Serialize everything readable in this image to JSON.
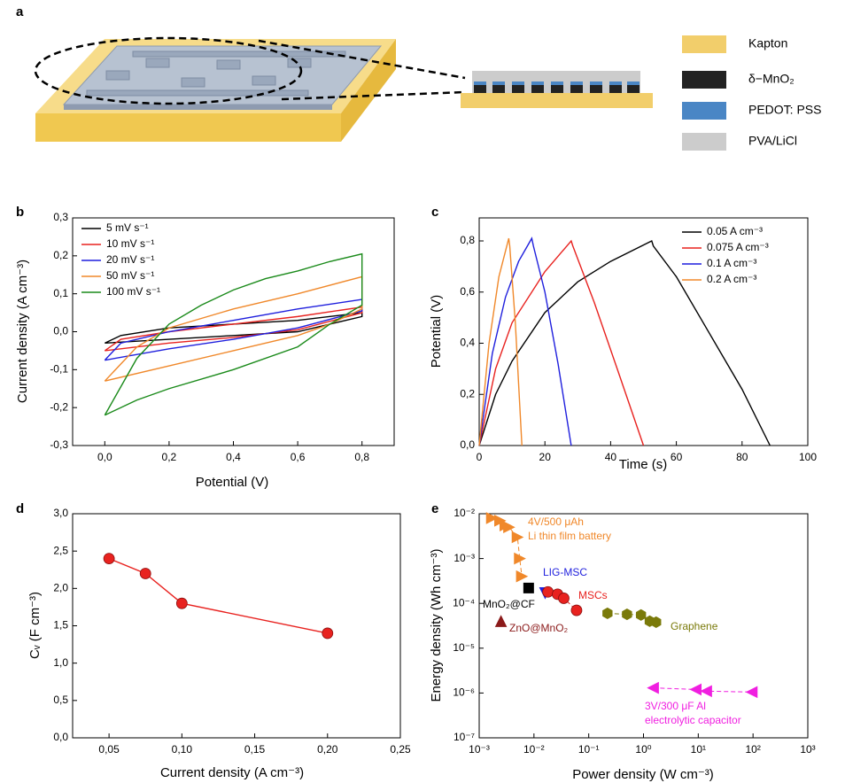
{
  "schematic": {
    "panel": "a",
    "legend": [
      {
        "name": "Kapton",
        "color": "#f2ce6b"
      },
      {
        "name": "δ−MnO₂",
        "color": "#222222"
      },
      {
        "name": "PEDOT: PSS",
        "color": "#4a86c5"
      },
      {
        "name": "PVA/LiCl",
        "color": "#cccccc"
      }
    ]
  },
  "chart_data": [
    {
      "type": "line",
      "panel": "b",
      "x_label": "Potential (V)",
      "y_label": "Current density (A cm⁻³)",
      "xlim": [
        -0.1,
        0.9
      ],
      "ylim": [
        -0.3,
        0.3
      ],
      "xticks": [
        {
          "value": 0,
          "label": "0,0"
        },
        {
          "value": 0.2,
          "label": "0,2"
        },
        {
          "value": 0.4,
          "label": "0,4"
        },
        {
          "value": 0.6,
          "label": "0,6"
        },
        {
          "value": 0.8,
          "label": "0,8"
        }
      ],
      "yticks": [
        {
          "value": -0.3,
          "label": "-0,3"
        },
        {
          "value": -0.2,
          "label": "-0,2"
        },
        {
          "value": -0.1,
          "label": "-0,1"
        },
        {
          "value": 0,
          "label": "0,0"
        },
        {
          "value": 0.1,
          "label": "0,1"
        },
        {
          "value": 0.2,
          "label": "0,2"
        },
        {
          "value": 0.3,
          "label": "0,3"
        }
      ],
      "series": [
        {
          "name": "5 mV s⁻¹",
          "color": "#000000",
          "x": [
            0,
            0.05,
            0.2,
            0.4,
            0.6,
            0.8,
            0.8,
            0.6,
            0.4,
            0.2,
            0
          ],
          "values": [
            -0.03,
            -0.01,
            0.01,
            0.02,
            0.03,
            0.05,
            0.04,
            0.0,
            -0.01,
            -0.02,
            -0.03
          ]
        },
        {
          "name": "10 mV s⁻¹",
          "color": "#e8221f",
          "x": [
            0,
            0.05,
            0.2,
            0.4,
            0.6,
            0.8,
            0.8,
            0.6,
            0.4,
            0.2,
            0
          ],
          "values": [
            -0.05,
            -0.02,
            0.0,
            0.02,
            0.04,
            0.065,
            0.05,
            0.005,
            -0.015,
            -0.03,
            -0.05
          ]
        },
        {
          "name": "20 mV s⁻¹",
          "color": "#1f1fdd",
          "x": [
            0,
            0.05,
            0.2,
            0.4,
            0.6,
            0.8,
            0.8,
            0.6,
            0.4,
            0.2,
            0
          ],
          "values": [
            -0.075,
            -0.03,
            0.0,
            0.03,
            0.06,
            0.085,
            0.055,
            0.01,
            -0.02,
            -0.045,
            -0.075
          ]
        },
        {
          "name": "50 mV s⁻¹",
          "color": "#f0882a",
          "x": [
            0,
            0.1,
            0.2,
            0.4,
            0.6,
            0.8,
            0.8,
            0.7,
            0.6,
            0.4,
            0.2,
            0
          ],
          "values": [
            -0.13,
            -0.04,
            0.01,
            0.06,
            0.1,
            0.145,
            0.06,
            0.02,
            -0.01,
            -0.05,
            -0.09,
            -0.13
          ]
        },
        {
          "name": "100 mV s⁻¹",
          "color": "#1a8a1a",
          "x": [
            0,
            0.1,
            0.2,
            0.3,
            0.4,
            0.5,
            0.6,
            0.7,
            0.8,
            0.8,
            0.7,
            0.6,
            0.4,
            0.2,
            0.1,
            0
          ],
          "values": [
            -0.22,
            -0.07,
            0.02,
            0.07,
            0.11,
            0.14,
            0.16,
            0.185,
            0.205,
            0.07,
            0.02,
            -0.04,
            -0.1,
            -0.15,
            -0.18,
            -0.22
          ]
        }
      ]
    },
    {
      "type": "line",
      "panel": "c",
      "x_label": "Time (s)",
      "y_label": "Potential (V)",
      "xlim": [
        0,
        100
      ],
      "ylim": [
        0,
        0.89
      ],
      "xticks": [
        0,
        20,
        40,
        60,
        80,
        100
      ],
      "yticks": [
        {
          "value": 0,
          "label": "0,0"
        },
        {
          "value": 0.2,
          "label": "0,2"
        },
        {
          "value": 0.4,
          "label": "0,4"
        },
        {
          "value": 0.6,
          "label": "0,6"
        },
        {
          "value": 0.8,
          "label": "0,8"
        }
      ],
      "series": [
        {
          "name": "0.05 A cm⁻³",
          "color": "#000000",
          "x": [
            0,
            5,
            10,
            20,
            30,
            40,
            52.5,
            53,
            60,
            70,
            80,
            88.5
          ],
          "values": [
            0,
            0.2,
            0.33,
            0.52,
            0.64,
            0.72,
            0.8,
            0.78,
            0.66,
            0.44,
            0.22,
            0
          ]
        },
        {
          "name": "0.075 A cm⁻³",
          "color": "#e8221f",
          "x": [
            0,
            5,
            10,
            20,
            28,
            28.5,
            35,
            42,
            50
          ],
          "values": [
            0,
            0.3,
            0.48,
            0.68,
            0.8,
            0.78,
            0.56,
            0.3,
            0
          ]
        },
        {
          "name": "0.1 A cm⁻³",
          "color": "#1f1fdd",
          "x": [
            0,
            4,
            8,
            12,
            16,
            16.5,
            20,
            24,
            28
          ],
          "values": [
            0,
            0.36,
            0.58,
            0.72,
            0.81,
            0.78,
            0.6,
            0.32,
            0
          ]
        },
        {
          "name": "0.2 A cm⁻³",
          "color": "#f0882a",
          "x": [
            0,
            3,
            6,
            9,
            9.3,
            11,
            13
          ],
          "values": [
            0,
            0.4,
            0.66,
            0.81,
            0.78,
            0.48,
            0
          ]
        }
      ]
    },
    {
      "type": "line",
      "panel": "d",
      "x_label": "Current density (A cm⁻³)",
      "y_label": "Cᵥ (F cm⁻³)",
      "xlim": [
        0.025,
        0.25
      ],
      "ylim": [
        0,
        3
      ],
      "xticks": [
        {
          "value": 0.05,
          "label": "0,05"
        },
        {
          "value": 0.1,
          "label": "0,10"
        },
        {
          "value": 0.15,
          "label": "0,15"
        },
        {
          "value": 0.2,
          "label": "0,20"
        },
        {
          "value": 0.25,
          "label": "0,25"
        }
      ],
      "yticks": [
        {
          "value": 0,
          "label": "0,0"
        },
        {
          "value": 0.5,
          "label": "0,5"
        },
        {
          "value": 1,
          "label": "1,0"
        },
        {
          "value": 1.5,
          "label": "1,5"
        },
        {
          "value": 2,
          "label": "2,0"
        },
        {
          "value": 2.5,
          "label": "2,5"
        },
        {
          "value": 3,
          "label": "3,0"
        }
      ],
      "series": [
        {
          "color": "#e8221f",
          "marker": "circle",
          "x": [
            0.05,
            0.075,
            0.1,
            0.2
          ],
          "values": [
            2.4,
            2.2,
            1.8,
            1.4
          ]
        }
      ]
    },
    {
      "type": "scatter",
      "panel": "e",
      "x_label": "Power density (W cm⁻³)",
      "y_label": "Energy density (Wh cm⁻³)",
      "log_x": true,
      "log_y": true,
      "xlim": [
        0.001,
        1000
      ],
      "ylim": [
        1e-07,
        0.01
      ],
      "xticks": [
        {
          "value": 0.001,
          "label": "10⁻³"
        },
        {
          "value": 0.01,
          "label": "10⁻²"
        },
        {
          "value": 0.1,
          "label": "10⁻¹"
        },
        {
          "value": 1,
          "label": "10⁰"
        },
        {
          "value": 10,
          "label": "10¹"
        },
        {
          "value": 100,
          "label": "10²"
        },
        {
          "value": 1000,
          "label": "10³"
        }
      ],
      "yticks": [
        {
          "value": 1e-07,
          "label": "10⁻⁷"
        },
        {
          "value": 1e-06,
          "label": "10⁻⁶"
        },
        {
          "value": 1e-05,
          "label": "10⁻⁵"
        },
        {
          "value": 0.0001,
          "label": "10⁻⁴"
        },
        {
          "value": 0.001,
          "label": "10⁻³"
        },
        {
          "value": 0.01,
          "label": "10⁻²"
        }
      ],
      "series": [
        {
          "label": [
            "4V/500 μAh",
            "Li thin film battery"
          ],
          "color": "#f0882a",
          "marker": "triangle-right",
          "connect": true,
          "x": [
            0.0017,
            0.0024,
            0.003,
            0.0035,
            0.005,
            0.0055,
            0.006
          ],
          "values": [
            0.008,
            0.007,
            0.0055,
            0.005,
            0.003,
            0.001,
            0.0004
          ]
        },
        {
          "label": [
            "LIG-MSC"
          ],
          "color": "#1f1fdd",
          "marker": "triangle-down",
          "x": [
            0.016
          ],
          "values": [
            0.00017
          ]
        },
        {
          "label": [
            "MnO₂@CF"
          ],
          "color": "#000000",
          "marker": "square",
          "x": [
            0.008
          ],
          "values": [
            0.00022
          ]
        },
        {
          "label": [
            "ZnO@MnO₂"
          ],
          "color": "#8b1a1a",
          "marker": "triangle-up",
          "x": [
            0.0025
          ],
          "values": [
            4e-05
          ]
        },
        {
          "label": [
            "MSCs"
          ],
          "color": "#e8221f",
          "marker": "circle",
          "connect": true,
          "x": [
            0.018,
            0.027,
            0.035,
            0.06
          ],
          "values": [
            0.00018,
            0.00016,
            0.00013,
            7e-05
          ]
        },
        {
          "label": [
            "Graphene"
          ],
          "color": "#7a7a0a",
          "marker": "hexagon",
          "connect": true,
          "x": [
            0.22,
            0.5,
            0.9,
            1.3,
            1.7
          ],
          "values": [
            6e-05,
            5.7e-05,
            5.5e-05,
            4e-05,
            3.8e-05
          ]
        },
        {
          "label": [
            "3V/300 μF Al",
            "electrolytic capacitor"
          ],
          "color": "#f01fe0",
          "marker": "triangle-left",
          "connect": true,
          "x": [
            1.5,
            9,
            14,
            95
          ],
          "values": [
            1.3e-06,
            1.2e-06,
            1.1e-06,
            1.05e-06
          ]
        }
      ]
    }
  ]
}
